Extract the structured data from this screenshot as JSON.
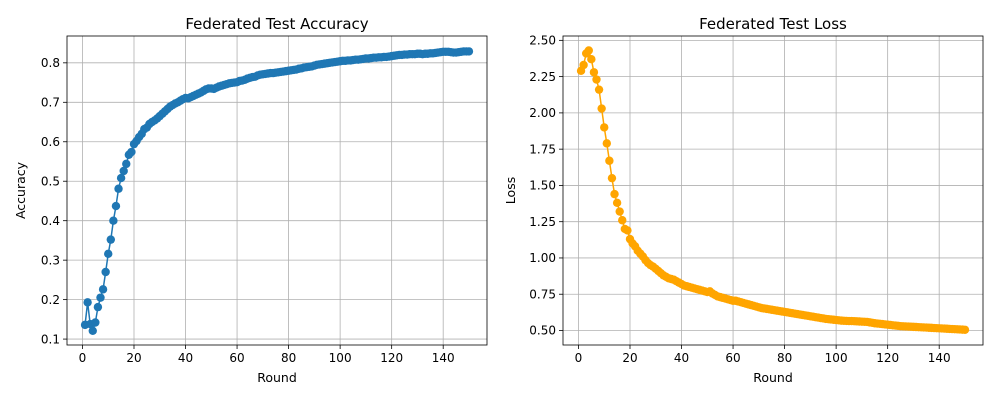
{
  "chart_data": [
    {
      "type": "line",
      "title": "Federated Test Accuracy",
      "xlabel": "Round",
      "ylabel": "Accuracy",
      "xlim": [
        -6,
        157
      ],
      "ylim": [
        0.085,
        0.868
      ],
      "xticks": [
        0,
        20,
        40,
        60,
        80,
        100,
        120,
        140
      ],
      "yticks": [
        0.1,
        0.2,
        0.3,
        0.4,
        0.5,
        0.6,
        0.7,
        0.8
      ],
      "xtick_labels": [
        "0",
        "20",
        "40",
        "60",
        "80",
        "100",
        "120",
        "140"
      ],
      "ytick_labels": [
        "0.1",
        "0.2",
        "0.3",
        "0.4",
        "0.5",
        "0.6",
        "0.7",
        "0.8"
      ],
      "grid": true,
      "marker": "circle",
      "color": "#1f77b4",
      "x_start": 1,
      "values": [
        0.136,
        0.193,
        0.138,
        0.121,
        0.142,
        0.181,
        0.205,
        0.226,
        0.27,
        0.316,
        0.352,
        0.4,
        0.437,
        0.481,
        0.508,
        0.526,
        0.544,
        0.567,
        0.574,
        0.594,
        0.602,
        0.612,
        0.62,
        0.632,
        0.636,
        0.645,
        0.65,
        0.654,
        0.659,
        0.665,
        0.671,
        0.677,
        0.683,
        0.689,
        0.693,
        0.697,
        0.7,
        0.704,
        0.708,
        0.711,
        0.71,
        0.713,
        0.716,
        0.719,
        0.722,
        0.725,
        0.729,
        0.733,
        0.735,
        0.735,
        0.734,
        0.737,
        0.74,
        0.742,
        0.744,
        0.746,
        0.748,
        0.749,
        0.75,
        0.751,
        0.754,
        0.755,
        0.757,
        0.76,
        0.762,
        0.764,
        0.765,
        0.768,
        0.77,
        0.771,
        0.772,
        0.773,
        0.774,
        0.774,
        0.775,
        0.776,
        0.777,
        0.778,
        0.779,
        0.78,
        0.781,
        0.782,
        0.783,
        0.785,
        0.786,
        0.788,
        0.789,
        0.79,
        0.791,
        0.793,
        0.795,
        0.796,
        0.797,
        0.798,
        0.799,
        0.8,
        0.801,
        0.802,
        0.803,
        0.804,
        0.805,
        0.805,
        0.806,
        0.806,
        0.807,
        0.808,
        0.808,
        0.809,
        0.81,
        0.811,
        0.811,
        0.812,
        0.813,
        0.813,
        0.814,
        0.814,
        0.815,
        0.815,
        0.816,
        0.817,
        0.818,
        0.819,
        0.82,
        0.82,
        0.821,
        0.821,
        0.822,
        0.822,
        0.822,
        0.823,
        0.823,
        0.822,
        0.823,
        0.823,
        0.824,
        0.824,
        0.825,
        0.826,
        0.827,
        0.828,
        0.828,
        0.828,
        0.827,
        0.826,
        0.826,
        0.827,
        0.828,
        0.829,
        0.829,
        0.829
      ]
    },
    {
      "type": "line",
      "title": "Federated Test Loss",
      "xlabel": "Round",
      "ylabel": "Loss",
      "xlim": [
        -6,
        157
      ],
      "ylim": [
        0.4,
        2.53
      ],
      "xticks": [
        0,
        20,
        40,
        60,
        80,
        100,
        120,
        140
      ],
      "yticks": [
        0.5,
        0.75,
        1.0,
        1.25,
        1.5,
        1.75,
        2.0,
        2.25,
        2.5
      ],
      "xtick_labels": [
        "0",
        "20",
        "40",
        "60",
        "80",
        "100",
        "120",
        "140"
      ],
      "ytick_labels": [
        "0.50",
        "0.75",
        "1.00",
        "1.25",
        "1.50",
        "1.75",
        "2.00",
        "2.25",
        "2.50"
      ],
      "grid": true,
      "marker": "circle",
      "color": "#ffa500",
      "x_start": 1,
      "values": [
        2.29,
        2.33,
        2.41,
        2.43,
        2.37,
        2.28,
        2.23,
        2.16,
        2.03,
        1.9,
        1.79,
        1.67,
        1.55,
        1.44,
        1.38,
        1.32,
        1.26,
        1.2,
        1.19,
        1.13,
        1.1,
        1.08,
        1.05,
        1.03,
        1.01,
        0.985,
        0.965,
        0.95,
        0.94,
        0.925,
        0.91,
        0.895,
        0.88,
        0.87,
        0.86,
        0.855,
        0.85,
        0.84,
        0.83,
        0.82,
        0.81,
        0.805,
        0.8,
        0.795,
        0.79,
        0.785,
        0.78,
        0.775,
        0.77,
        0.765,
        0.77,
        0.755,
        0.745,
        0.735,
        0.73,
        0.725,
        0.72,
        0.715,
        0.71,
        0.705,
        0.705,
        0.7,
        0.695,
        0.69,
        0.685,
        0.68,
        0.675,
        0.67,
        0.665,
        0.66,
        0.655,
        0.652,
        0.649,
        0.646,
        0.643,
        0.64,
        0.637,
        0.634,
        0.631,
        0.628,
        0.625,
        0.622,
        0.619,
        0.616,
        0.613,
        0.61,
        0.607,
        0.604,
        0.601,
        0.598,
        0.595,
        0.592,
        0.589,
        0.586,
        0.583,
        0.58,
        0.578,
        0.576,
        0.574,
        0.572,
        0.57,
        0.568,
        0.567,
        0.566,
        0.565,
        0.565,
        0.564,
        0.563,
        0.562,
        0.561,
        0.56,
        0.559,
        0.556,
        0.553,
        0.55,
        0.548,
        0.546,
        0.544,
        0.542,
        0.54,
        0.538,
        0.536,
        0.534,
        0.532,
        0.53,
        0.529,
        0.528,
        0.527,
        0.526,
        0.525,
        0.524,
        0.523,
        0.522,
        0.521,
        0.52,
        0.519,
        0.518,
        0.517,
        0.516,
        0.515,
        0.514,
        0.513,
        0.512,
        0.511,
        0.51,
        0.509,
        0.508,
        0.507,
        0.506,
        0.505
      ]
    }
  ]
}
